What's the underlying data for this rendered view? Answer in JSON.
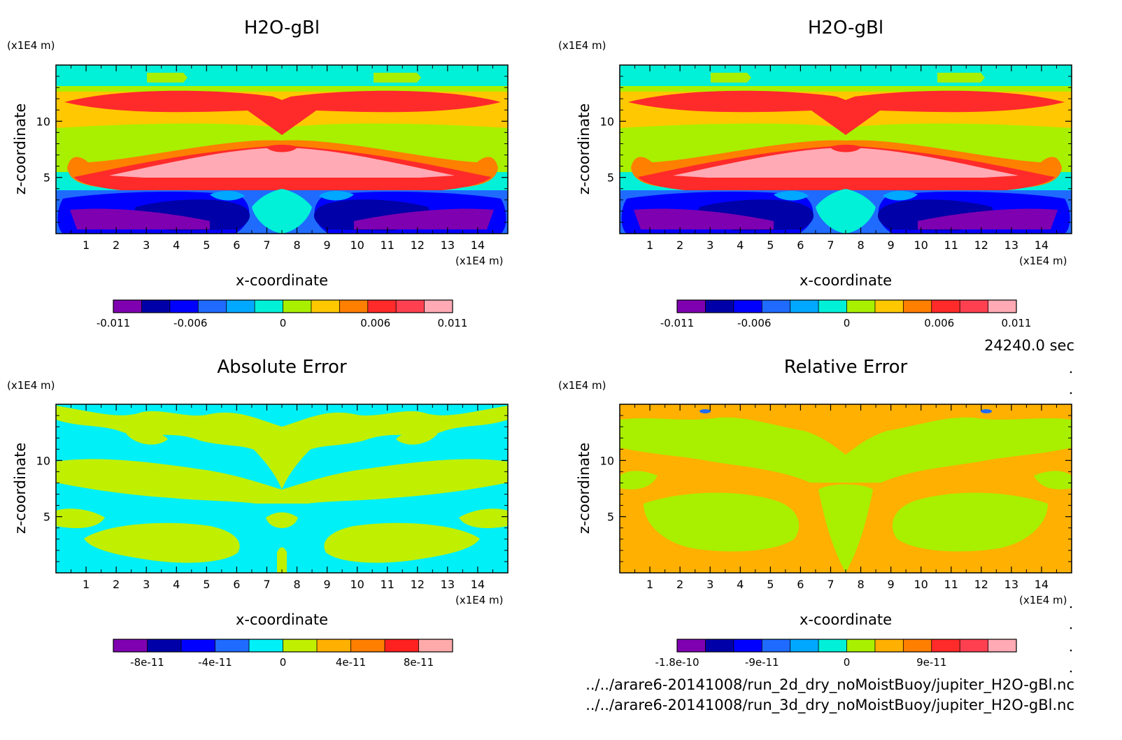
{
  "chart_data": [
    {
      "type": "heatmap",
      "title": "H2O-gBl",
      "xlabel": "x-coordinate",
      "ylabel": "z-coordinate",
      "x_unit": "(x1E4 m)",
      "y_unit": "(x1E4 m)",
      "xlim": [
        0,
        15
      ],
      "ylim": [
        0,
        15
      ],
      "x_ticks": [
        "1",
        "2",
        "3",
        "4",
        "5",
        "6",
        "7",
        "8",
        "9",
        "10",
        "11",
        "12",
        "13",
        "14"
      ],
      "y_ticks": [
        "5",
        "10"
      ],
      "colorbar": {
        "colors": [
          "#7f00b0",
          "#0000a8",
          "#0000ff",
          "#1f6bff",
          "#00a8ff",
          "#00f0d8",
          "#a8f000",
          "#ffc800",
          "#ff7f00",
          "#ff2a2a",
          "#ff4050",
          "#ffaab4"
        ],
        "tick_labels": [
          "-0.011",
          "-0.006",
          "0",
          "0.006",
          "0.011"
        ],
        "tick_values": [
          -0.011,
          -0.006,
          0,
          0.006,
          0.011
        ],
        "range": [
          -0.011,
          0.011
        ]
      }
    },
    {
      "type": "heatmap",
      "title": "H2O-gBl",
      "xlabel": "x-coordinate",
      "ylabel": "z-coordinate",
      "x_unit": "(x1E4 m)",
      "y_unit": "(x1E4 m)",
      "xlim": [
        0,
        15
      ],
      "ylim": [
        0,
        15
      ],
      "x_ticks": [
        "1",
        "2",
        "3",
        "4",
        "5",
        "6",
        "7",
        "8",
        "9",
        "10",
        "11",
        "12",
        "13",
        "14"
      ],
      "y_ticks": [
        "5",
        "10"
      ],
      "colorbar": {
        "colors": [
          "#7f00b0",
          "#0000a8",
          "#0000ff",
          "#1f6bff",
          "#00a8ff",
          "#00f0d8",
          "#a8f000",
          "#ffc800",
          "#ff7f00",
          "#ff2a2a",
          "#ff4050",
          "#ffaab4"
        ],
        "tick_labels": [
          "-0.011",
          "-0.006",
          "0",
          "0.006",
          "0.011"
        ],
        "tick_values": [
          -0.011,
          -0.006,
          0,
          0.006,
          0.011
        ],
        "range": [
          -0.011,
          0.011
        ]
      }
    },
    {
      "type": "heatmap",
      "title": "Absolute Error",
      "xlabel": "x-coordinate",
      "ylabel": "z-coordinate",
      "x_unit": "(x1E4 m)",
      "y_unit": "(x1E4 m)",
      "xlim": [
        0,
        15
      ],
      "ylim": [
        0,
        15
      ],
      "x_ticks": [
        "1",
        "2",
        "3",
        "4",
        "5",
        "6",
        "7",
        "8",
        "9",
        "10",
        "11",
        "12",
        "13",
        "14"
      ],
      "y_ticks": [
        "5",
        "10"
      ],
      "colorbar": {
        "colors": [
          "#7f00b0",
          "#0000a8",
          "#0000ff",
          "#1f6bff",
          "#00f0f8",
          "#c0f000",
          "#ffb000",
          "#ff7f00",
          "#ff2020",
          "#ffaaaa"
        ],
        "tick_labels": [
          "-8e-11",
          "-4e-11",
          "0",
          "4e-11",
          "8e-11"
        ],
        "tick_values": [
          -8e-11,
          -4e-11,
          0,
          4e-11,
          8e-11
        ],
        "range": [
          -1e-10,
          1e-10
        ]
      }
    },
    {
      "type": "heatmap",
      "title": "Relative Error",
      "xlabel": "x-coordinate",
      "ylabel": "z-coordinate",
      "x_unit": "(x1E4 m)",
      "y_unit": "(x1E4 m)",
      "xlim": [
        0,
        15
      ],
      "ylim": [
        0,
        15
      ],
      "x_ticks": [
        "1",
        "2",
        "3",
        "4",
        "5",
        "6",
        "7",
        "8",
        "9",
        "10",
        "11",
        "12",
        "13",
        "14"
      ],
      "y_ticks": [
        "5",
        "10"
      ],
      "colorbar": {
        "colors": [
          "#7f00b0",
          "#0000a8",
          "#0000ff",
          "#1f6bff",
          "#00a8ff",
          "#00f0d8",
          "#a8f000",
          "#ffb000",
          "#ff7f00",
          "#ff2a2a",
          "#ff4050",
          "#ffaab4"
        ],
        "tick_labels": [
          "-1.8e-10",
          "-9e-11",
          "0",
          "9e-11"
        ],
        "tick_values": [
          -1.8e-10,
          -9e-11,
          0,
          9e-11
        ],
        "range": [
          -1.8e-10,
          1.8e-10
        ]
      }
    }
  ],
  "time_label": "24240.0 sec",
  "files": [
    "../../arare6-20141008/run_2d_dry_noMoistBuoy/jupiter_H2O-gBl.nc",
    "../../arare6-20141008/run_3d_dry_noMoistBuoy/jupiter_H2O-gBl.nc"
  ]
}
